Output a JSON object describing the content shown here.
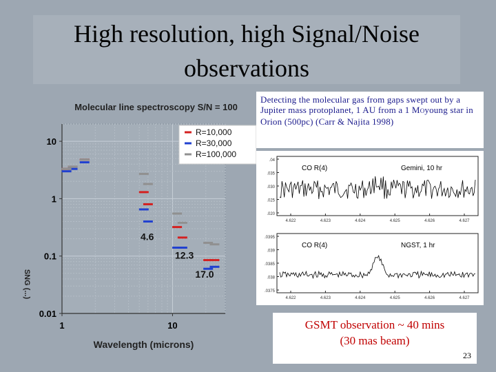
{
  "slide": {
    "title_line1": "High resolution, high Signal/Noise",
    "title_line2": "observations",
    "caption_part1": "Detecting the molecular gas from gaps swept out by a Jupiter mass protoplanet, 1 AU from a 1 M",
    "caption_sub": "O",
    "caption_part2": "young star in Orion (500pc) (Carr & Najita 1998)",
    "result_line1": "GSMT observation ~ 40 mins",
    "result_line2": "(30 mas beam)",
    "page_number": "23"
  },
  "chart_data": [
    {
      "type": "scatter",
      "title": "Molecular line spectroscopy S/N = 100",
      "xlabel": "Wavelength (microns)",
      "ylabel_rotated": "SNG (...)",
      "x_scale": "log",
      "y_scale": "log",
      "xlim": [
        1,
        30
      ],
      "ylim": [
        0.01,
        20
      ],
      "x_ticks": [
        1,
        10
      ],
      "y_ticks": [
        0.01,
        0.1,
        1,
        10
      ],
      "y_tick_labels": [
        "0.01",
        "0.1",
        "1",
        "10"
      ],
      "x_tick_labels": [
        "1",
        "10"
      ],
      "grid": true,
      "legend": "top-right",
      "series": [
        {
          "name": "R=10,000",
          "color": "#d42020",
          "x": [
            1.1,
            1.25,
            1.6,
            5.5,
            6.0,
            11.0,
            12.3,
            21.0,
            24.0
          ],
          "y": [
            3.3,
            3.6,
            4.8,
            1.3,
            0.8,
            0.32,
            0.21,
            0.085,
            0.085
          ]
        },
        {
          "name": "R=30,000",
          "color": "#2040d0",
          "x": [
            1.1,
            1.25,
            1.6,
            5.5,
            6.0,
            11.0,
            12.3,
            21.0,
            24.0
          ],
          "y": [
            3.0,
            3.3,
            4.3,
            0.65,
            0.4,
            0.14,
            0.14,
            0.06,
            0.065
          ]
        },
        {
          "name": "R=100,000",
          "color": "#909090",
          "x": [
            1.1,
            1.25,
            1.6,
            5.5,
            6.0,
            11.0,
            12.3,
            21.0,
            24.0
          ],
          "y": [
            3.3,
            3.6,
            4.8,
            2.7,
            1.8,
            0.55,
            0.38,
            0.17,
            0.16
          ]
        }
      ],
      "annotations": [
        {
          "text": "4.6",
          "x": 5.9,
          "y": 0.19
        },
        {
          "text": "12.3",
          "x": 12.8,
          "y": 0.09
        },
        {
          "text": "17.0",
          "x": 19.5,
          "y": 0.042
        }
      ]
    },
    {
      "type": "line",
      "title": "CO R(4)",
      "annotation": "Gemini, 10 hr",
      "xlabel": "",
      "x_tick_labels": [
        "4.622",
        "4.623",
        "4.624",
        "4.625",
        "4.626",
        "4.627"
      ],
      "y_tick_labels": [
        ".04",
        ".035",
        ".030",
        ".025",
        ".020"
      ],
      "series": [
        {
          "color": "#000000",
          "noise": "high",
          "feature_at": 0.5
        }
      ]
    },
    {
      "type": "line",
      "title": "CO R(4)",
      "annotation": "NGST, 1 hr",
      "xlabel": "",
      "x_tick_labels": [
        "4.622",
        "4.623",
        "4.624",
        "4.625",
        "4.626",
        "4.627"
      ],
      "y_tick_labels": [
        ".0395",
        ".039",
        ".0385",
        ".038",
        ".0375"
      ],
      "series": [
        {
          "color": "#000000",
          "noise": "low",
          "feature_at": 0.5
        }
      ]
    }
  ]
}
